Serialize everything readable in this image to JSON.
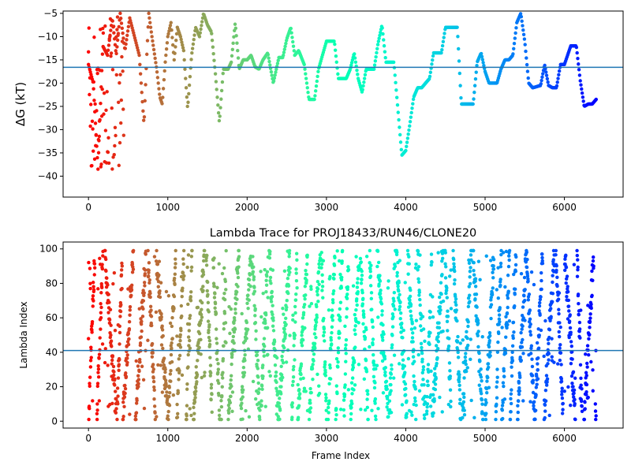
{
  "chart_data": [
    {
      "type": "scatter",
      "title": "",
      "xlabel": "",
      "ylabel": "ΔG (kT)",
      "xlim": [
        -320,
        6740
      ],
      "ylim": [
        -44.5,
        -4.5
      ],
      "xticks": [
        0,
        1000,
        2000,
        3000,
        4000,
        5000,
        6000
      ],
      "yticks": [
        -40,
        -35,
        -30,
        -25,
        -20,
        -15,
        -10,
        -5
      ],
      "hline": -16.6,
      "hline_color": "#1f77b4",
      "colormap": "rainbow",
      "x_end": 6400,
      "grid": false,
      "trace": [
        [
          0,
          -16.0
        ],
        [
          60,
          -20.0
        ],
        [
          120,
          -38.5
        ],
        [
          180,
          -12.0
        ],
        [
          240,
          -14.0
        ],
        [
          300,
          -6.0
        ],
        [
          350,
          -14.0
        ],
        [
          400,
          -5.0
        ],
        [
          460,
          -13.0
        ],
        [
          520,
          -6.0
        ],
        [
          580,
          -10.0
        ],
        [
          640,
          -14.0
        ],
        [
          700,
          -29.0
        ],
        [
          730,
          -16.0
        ],
        [
          760,
          -5.0
        ],
        [
          800,
          -10.0
        ],
        [
          860,
          -17.0
        ],
        [
          900,
          -23.0
        ],
        [
          930,
          -24.5
        ],
        [
          970,
          -15.0
        ],
        [
          1000,
          -10.0
        ],
        [
          1040,
          -7.0
        ],
        [
          1080,
          -15.0
        ],
        [
          1120,
          -8.0
        ],
        [
          1160,
          -10.0
        ],
        [
          1200,
          -13.0
        ],
        [
          1250,
          -25.5
        ],
        [
          1300,
          -14.0
        ],
        [
          1350,
          -8.0
        ],
        [
          1400,
          -10.0
        ],
        [
          1450,
          -5.0
        ],
        [
          1500,
          -7.5
        ],
        [
          1550,
          -9.0
        ],
        [
          1600,
          -18.0
        ],
        [
          1650,
          -28.5
        ],
        [
          1700,
          -17.0
        ],
        [
          1760,
          -17.0
        ],
        [
          1800,
          -15.5
        ],
        [
          1850,
          -7.0
        ],
        [
          1900,
          -17.0
        ],
        [
          1950,
          -15.0
        ],
        [
          2000,
          -15.0
        ],
        [
          2050,
          -14.0
        ],
        [
          2100,
          -16.5
        ],
        [
          2150,
          -17.0
        ],
        [
          2200,
          -15.0
        ],
        [
          2260,
          -13.5
        ],
        [
          2330,
          -20.0
        ],
        [
          2400,
          -14.5
        ],
        [
          2450,
          -14.5
        ],
        [
          2500,
          -10.5
        ],
        [
          2550,
          -8.0
        ],
        [
          2600,
          -14.0
        ],
        [
          2650,
          -13.0
        ],
        [
          2720,
          -16.0
        ],
        [
          2780,
          -23.5
        ],
        [
          2850,
          -23.5
        ],
        [
          2900,
          -17.0
        ],
        [
          2950,
          -14.0
        ],
        [
          3000,
          -11.0
        ],
        [
          3100,
          -11.0
        ],
        [
          3150,
          -19.0
        ],
        [
          3250,
          -19.0
        ],
        [
          3300,
          -17.0
        ],
        [
          3350,
          -13.5
        ],
        [
          3400,
          -19.0
        ],
        [
          3450,
          -22.0
        ],
        [
          3500,
          -17.0
        ],
        [
          3600,
          -17.0
        ],
        [
          3650,
          -11.5
        ],
        [
          3700,
          -7.5
        ],
        [
          3750,
          -15.5
        ],
        [
          3850,
          -15.5
        ],
        [
          3950,
          -35.5
        ],
        [
          4000,
          -34.5
        ],
        [
          4050,
          -29.0
        ],
        [
          4100,
          -23.0
        ],
        [
          4150,
          -21.0
        ],
        [
          4200,
          -21.0
        ],
        [
          4300,
          -19.0
        ],
        [
          4350,
          -13.5
        ],
        [
          4450,
          -13.5
        ],
        [
          4500,
          -8.0
        ],
        [
          4650,
          -8.0
        ],
        [
          4700,
          -24.5
        ],
        [
          4850,
          -24.5
        ],
        [
          4900,
          -15.5
        ],
        [
          4950,
          -13.5
        ],
        [
          5000,
          -17.5
        ],
        [
          5050,
          -20.0
        ],
        [
          5150,
          -20.0
        ],
        [
          5200,
          -17.0
        ],
        [
          5250,
          -15.0
        ],
        [
          5300,
          -15.0
        ],
        [
          5350,
          -14.0
        ],
        [
          5400,
          -7.0
        ],
        [
          5450,
          -5.0
        ],
        [
          5500,
          -11.0
        ],
        [
          5550,
          -20.0
        ],
        [
          5600,
          -21.0
        ],
        [
          5700,
          -20.5
        ],
        [
          5750,
          -16.0
        ],
        [
          5800,
          -20.5
        ],
        [
          5850,
          -21.0
        ],
        [
          5900,
          -21.0
        ],
        [
          5950,
          -16.0
        ],
        [
          6000,
          -16.0
        ],
        [
          6080,
          -12.0
        ],
        [
          6150,
          -12.0
        ],
        [
          6200,
          -19.5
        ],
        [
          6250,
          -25.0
        ],
        [
          6300,
          -24.5
        ],
        [
          6350,
          -24.5
        ],
        [
          6400,
          -23.5
        ]
      ]
    },
    {
      "type": "scatter",
      "title": "Lambda Trace for PROJ18433/RUN46/CLONE20",
      "xlabel": "Frame Index",
      "ylabel": "Lambda Index",
      "xlim": [
        -320,
        6740
      ],
      "ylim": [
        -4,
        104
      ],
      "xticks": [
        0,
        1000,
        2000,
        3000,
        4000,
        5000,
        6000
      ],
      "yticks": [
        0,
        20,
        40,
        60,
        80,
        100
      ],
      "hline": 41,
      "hline_color": "#1f77b4",
      "colormap": "rainbow",
      "x_end": 6400,
      "grid": false,
      "lambda_range": [
        1,
        99
      ]
    }
  ]
}
